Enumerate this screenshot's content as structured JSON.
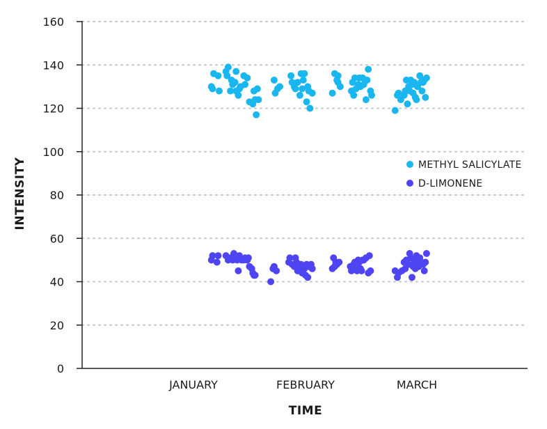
{
  "chart_data": {
    "type": "scatter",
    "title": "",
    "xlabel": "TIME",
    "ylabel": "INTENSITY",
    "x_categories": [
      "JANUARY",
      "FEBRUARY",
      "MARCH"
    ],
    "ylim": [
      0,
      160
    ],
    "yticks": [
      0,
      20,
      40,
      60,
      80,
      100,
      120,
      140,
      160
    ],
    "grid": "horizontal dotted",
    "legend_placement": "right",
    "series": [
      {
        "name": "METHYL SALICYLATE",
        "color": "#1ab6f0",
        "points": [
          {
            "x": 1.16,
            "y": 130
          },
          {
            "x": 1.17,
            "y": 129
          },
          {
            "x": 1.18,
            "y": 136
          },
          {
            "x": 1.22,
            "y": 135
          },
          {
            "x": 1.23,
            "y": 128
          },
          {
            "x": 1.29,
            "y": 137
          },
          {
            "x": 1.31,
            "y": 139
          },
          {
            "x": 1.3,
            "y": 135
          },
          {
            "x": 1.33,
            "y": 128
          },
          {
            "x": 1.34,
            "y": 133
          },
          {
            "x": 1.35,
            "y": 131
          },
          {
            "x": 1.37,
            "y": 132
          },
          {
            "x": 1.38,
            "y": 128
          },
          {
            "x": 1.38,
            "y": 137
          },
          {
            "x": 1.4,
            "y": 126
          },
          {
            "x": 1.41,
            "y": 129
          },
          {
            "x": 1.42,
            "y": 130
          },
          {
            "x": 1.45,
            "y": 135
          },
          {
            "x": 1.46,
            "y": 131
          },
          {
            "x": 1.48,
            "y": 134
          },
          {
            "x": 1.5,
            "y": 123
          },
          {
            "x": 1.53,
            "y": 122
          },
          {
            "x": 1.54,
            "y": 128
          },
          {
            "x": 1.55,
            "y": 124
          },
          {
            "x": 1.56,
            "y": 117
          },
          {
            "x": 1.57,
            "y": 129
          },
          {
            "x": 1.58,
            "y": 124
          },
          {
            "x": 1.72,
            "y": 133
          },
          {
            "x": 1.73,
            "y": 127
          },
          {
            "x": 1.75,
            "y": 129
          },
          {
            "x": 1.77,
            "y": 130
          },
          {
            "x": 1.87,
            "y": 135
          },
          {
            "x": 1.88,
            "y": 132
          },
          {
            "x": 1.9,
            "y": 130
          },
          {
            "x": 1.91,
            "y": 129
          },
          {
            "x": 1.93,
            "y": 132
          },
          {
            "x": 1.95,
            "y": 126
          },
          {
            "x": 1.96,
            "y": 136
          },
          {
            "x": 1.97,
            "y": 129
          },
          {
            "x": 1.98,
            "y": 133
          },
          {
            "x": 1.99,
            "y": 136
          },
          {
            "x": 2.01,
            "y": 123
          },
          {
            "x": 2.02,
            "y": 130
          },
          {
            "x": 2.03,
            "y": 128
          },
          {
            "x": 2.04,
            "y": 120
          },
          {
            "x": 2.06,
            "y": 127
          },
          {
            "x": 2.24,
            "y": 127
          },
          {
            "x": 2.26,
            "y": 136
          },
          {
            "x": 2.28,
            "y": 133
          },
          {
            "x": 2.29,
            "y": 135
          },
          {
            "x": 2.29,
            "y": 132
          },
          {
            "x": 2.31,
            "y": 130
          },
          {
            "x": 2.41,
            "y": 128
          },
          {
            "x": 2.42,
            "y": 132
          },
          {
            "x": 2.43,
            "y": 126
          },
          {
            "x": 2.44,
            "y": 134
          },
          {
            "x": 2.45,
            "y": 129
          },
          {
            "x": 2.47,
            "y": 131
          },
          {
            "x": 2.48,
            "y": 134
          },
          {
            "x": 2.49,
            "y": 130
          },
          {
            "x": 2.51,
            "y": 134
          },
          {
            "x": 2.52,
            "y": 131
          },
          {
            "x": 2.54,
            "y": 124
          },
          {
            "x": 2.55,
            "y": 133
          },
          {
            "x": 2.56,
            "y": 138
          },
          {
            "x": 2.58,
            "y": 128
          },
          {
            "x": 2.59,
            "y": 126
          },
          {
            "x": 2.8,
            "y": 119
          },
          {
            "x": 2.82,
            "y": 126
          },
          {
            "x": 2.83,
            "y": 127
          },
          {
            "x": 2.85,
            "y": 124
          },
          {
            "x": 2.88,
            "y": 126
          },
          {
            "x": 2.89,
            "y": 128
          },
          {
            "x": 2.9,
            "y": 133
          },
          {
            "x": 2.91,
            "y": 122
          },
          {
            "x": 2.92,
            "y": 130
          },
          {
            "x": 2.93,
            "y": 128
          },
          {
            "x": 2.94,
            "y": 133
          },
          {
            "x": 2.95,
            "y": 131
          },
          {
            "x": 2.96,
            "y": 127
          },
          {
            "x": 2.97,
            "y": 132
          },
          {
            "x": 2.98,
            "y": 125
          },
          {
            "x": 2.99,
            "y": 124
          },
          {
            "x": 3.0,
            "y": 130
          },
          {
            "x": 3.02,
            "y": 135
          },
          {
            "x": 3.03,
            "y": 132
          },
          {
            "x": 3.04,
            "y": 128
          },
          {
            "x": 3.05,
            "y": 132
          },
          {
            "x": 3.06,
            "y": 133
          },
          {
            "x": 3.07,
            "y": 125
          },
          {
            "x": 3.08,
            "y": 134
          }
        ]
      },
      {
        "name": "D-LIMONENE",
        "color": "#4f44f2",
        "points": [
          {
            "x": 1.16,
            "y": 50
          },
          {
            "x": 1.17,
            "y": 52
          },
          {
            "x": 1.21,
            "y": 49
          },
          {
            "x": 1.22,
            "y": 52
          },
          {
            "x": 1.29,
            "y": 52
          },
          {
            "x": 1.31,
            "y": 50
          },
          {
            "x": 1.33,
            "y": 51
          },
          {
            "x": 1.34,
            "y": 51
          },
          {
            "x": 1.35,
            "y": 50
          },
          {
            "x": 1.36,
            "y": 53
          },
          {
            "x": 1.37,
            "y": 52
          },
          {
            "x": 1.39,
            "y": 50
          },
          {
            "x": 1.4,
            "y": 45
          },
          {
            "x": 1.41,
            "y": 52
          },
          {
            "x": 1.43,
            "y": 50
          },
          {
            "x": 1.45,
            "y": 50
          },
          {
            "x": 1.46,
            "y": 51
          },
          {
            "x": 1.48,
            "y": 50
          },
          {
            "x": 1.49,
            "y": 51
          },
          {
            "x": 1.5,
            "y": 47
          },
          {
            "x": 1.52,
            "y": 46
          },
          {
            "x": 1.53,
            "y": 44
          },
          {
            "x": 1.54,
            "y": 43
          },
          {
            "x": 1.55,
            "y": 43
          },
          {
            "x": 1.69,
            "y": 40
          },
          {
            "x": 1.71,
            "y": 46
          },
          {
            "x": 1.72,
            "y": 47
          },
          {
            "x": 1.74,
            "y": 45
          },
          {
            "x": 1.85,
            "y": 49
          },
          {
            "x": 1.86,
            "y": 51
          },
          {
            "x": 1.88,
            "y": 48
          },
          {
            "x": 1.9,
            "y": 47
          },
          {
            "x": 1.91,
            "y": 51
          },
          {
            "x": 1.92,
            "y": 49
          },
          {
            "x": 1.93,
            "y": 45
          },
          {
            "x": 1.95,
            "y": 46
          },
          {
            "x": 1.96,
            "y": 48
          },
          {
            "x": 1.97,
            "y": 44
          },
          {
            "x": 1.99,
            "y": 46
          },
          {
            "x": 2.0,
            "y": 43
          },
          {
            "x": 2.01,
            "y": 48
          },
          {
            "x": 2.02,
            "y": 42
          },
          {
            "x": 2.03,
            "y": 47
          },
          {
            "x": 2.05,
            "y": 48
          },
          {
            "x": 2.06,
            "y": 46
          },
          {
            "x": 2.24,
            "y": 46
          },
          {
            "x": 2.25,
            "y": 51
          },
          {
            "x": 2.26,
            "y": 47
          },
          {
            "x": 2.27,
            "y": 49
          },
          {
            "x": 2.28,
            "y": 48
          },
          {
            "x": 2.3,
            "y": 49
          },
          {
            "x": 2.4,
            "y": 47
          },
          {
            "x": 2.41,
            "y": 45
          },
          {
            "x": 2.43,
            "y": 48
          },
          {
            "x": 2.44,
            "y": 49
          },
          {
            "x": 2.45,
            "y": 47
          },
          {
            "x": 2.46,
            "y": 45
          },
          {
            "x": 2.47,
            "y": 50
          },
          {
            "x": 2.48,
            "y": 49
          },
          {
            "x": 2.49,
            "y": 46
          },
          {
            "x": 2.5,
            "y": 45
          },
          {
            "x": 2.51,
            "y": 50
          },
          {
            "x": 2.52,
            "y": 50
          },
          {
            "x": 2.54,
            "y": 51
          },
          {
            "x": 2.56,
            "y": 44
          },
          {
            "x": 2.57,
            "y": 52
          },
          {
            "x": 2.58,
            "y": 45
          },
          {
            "x": 2.8,
            "y": 45
          },
          {
            "x": 2.82,
            "y": 42
          },
          {
            "x": 2.83,
            "y": 44
          },
          {
            "x": 2.86,
            "y": 45
          },
          {
            "x": 2.88,
            "y": 49
          },
          {
            "x": 2.89,
            "y": 46
          },
          {
            "x": 2.9,
            "y": 50
          },
          {
            "x": 2.92,
            "y": 48
          },
          {
            "x": 2.93,
            "y": 53
          },
          {
            "x": 2.94,
            "y": 51
          },
          {
            "x": 2.95,
            "y": 42
          },
          {
            "x": 2.96,
            "y": 47
          },
          {
            "x": 2.97,
            "y": 49
          },
          {
            "x": 2.98,
            "y": 46
          },
          {
            "x": 2.99,
            "y": 52
          },
          {
            "x": 3.0,
            "y": 50
          },
          {
            "x": 3.01,
            "y": 47
          },
          {
            "x": 3.02,
            "y": 51
          },
          {
            "x": 3.03,
            "y": 49
          },
          {
            "x": 3.05,
            "y": 48
          },
          {
            "x": 3.06,
            "y": 45
          },
          {
            "x": 3.07,
            "y": 49
          },
          {
            "x": 3.08,
            "y": 53
          }
        ]
      }
    ]
  }
}
